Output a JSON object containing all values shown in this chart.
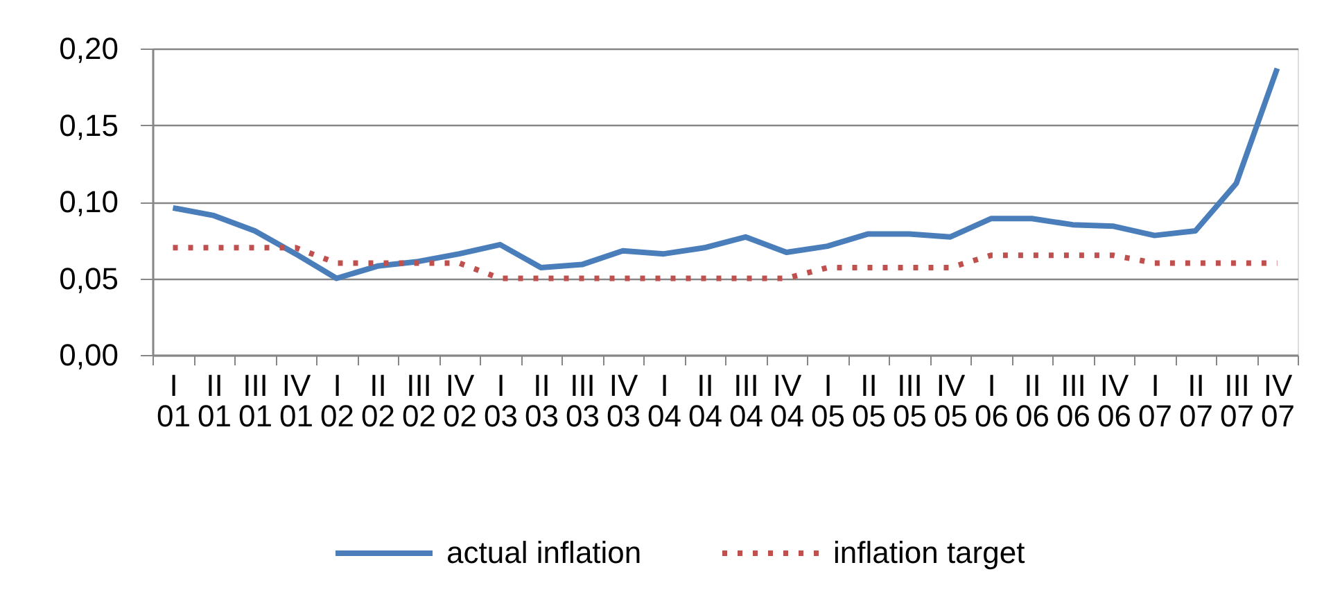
{
  "chart_data": {
    "type": "line",
    "categories": [
      "I 01",
      "II 01",
      "III 01",
      "IV 01",
      "I 02",
      "II 02",
      "III 02",
      "IV 02",
      "I 03",
      "II 03",
      "III 03",
      "IV 03",
      "I 04",
      "II 04",
      "III 04",
      "IV 04",
      "I 05",
      "II 05",
      "III 05",
      "IV 05",
      "I 06",
      "II 06",
      "III 06",
      "IV 06",
      "I 07",
      "II 07",
      "III 07",
      "IV 07"
    ],
    "series": [
      {
        "name": "actual inflation",
        "color": "#4a7ebb",
        "line_style": "solid",
        "values": [
          0.096,
          0.091,
          0.081,
          0.066,
          0.05,
          0.058,
          0.061,
          0.066,
          0.072,
          0.057,
          0.059,
          0.068,
          0.066,
          0.07,
          0.077,
          0.067,
          0.071,
          0.079,
          0.079,
          0.077,
          0.089,
          0.089,
          0.085,
          0.084,
          0.078,
          0.081,
          0.112,
          0.187
        ]
      },
      {
        "name": "inflation target",
        "color": "#c0504d",
        "line_style": "dotted",
        "values": [
          0.07,
          0.07,
          0.07,
          0.07,
          0.06,
          0.06,
          0.06,
          0.06,
          0.05,
          0.05,
          0.05,
          0.05,
          0.05,
          0.05,
          0.05,
          0.05,
          0.057,
          0.057,
          0.057,
          0.057,
          0.065,
          0.065,
          0.065,
          0.065,
          0.06,
          0.06,
          0.06,
          0.06
        ]
      }
    ],
    "ylim": [
      0,
      0.2
    ],
    "yticks": [
      {
        "value": 0,
        "label": "0,00"
      },
      {
        "value": 0.05,
        "label": "0,05"
      },
      {
        "value": 0.1,
        "label": "0,10"
      },
      {
        "value": 0.15,
        "label": "0,15"
      },
      {
        "value": 0.2,
        "label": "0,20"
      }
    ],
    "grid": "y",
    "legend": "bottom",
    "marker": "none"
  }
}
